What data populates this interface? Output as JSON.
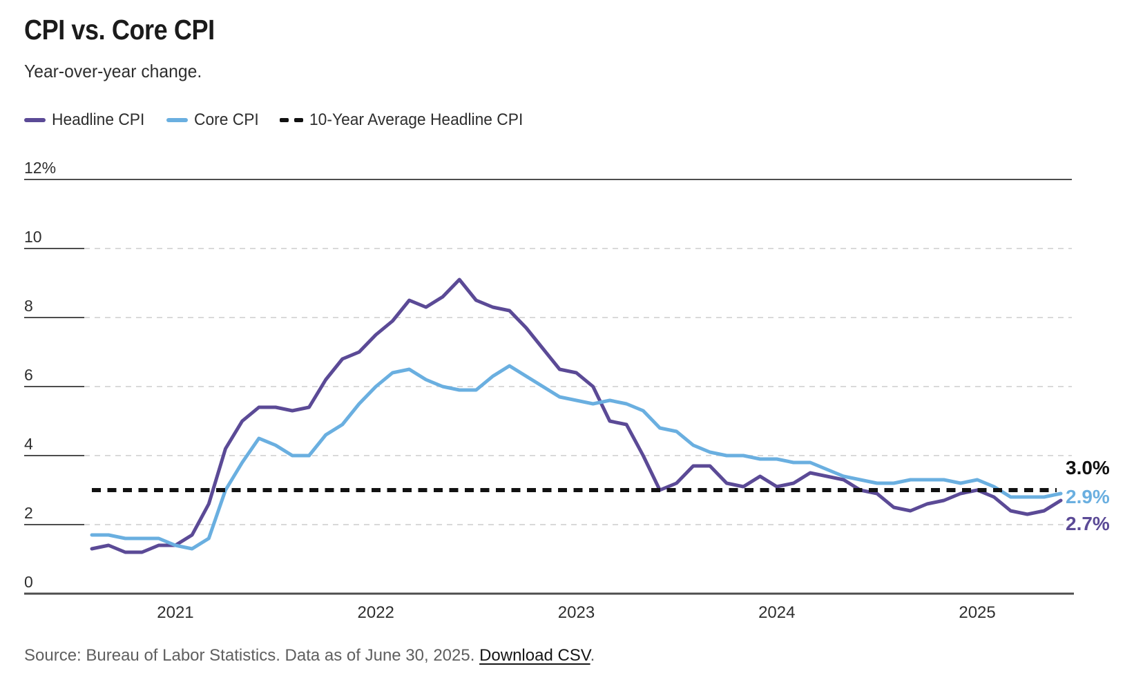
{
  "header": {
    "title": "CPI vs. Core CPI",
    "subtitle": "Year-over-year change."
  },
  "legend": {
    "items": [
      {
        "label": "Headline CPI",
        "color": "#5b4a96",
        "style": "solid"
      },
      {
        "label": "Core CPI",
        "color": "#6aafe0",
        "style": "solid"
      },
      {
        "label": "10-Year Average Headline CPI",
        "color": "#111111",
        "style": "dashed"
      }
    ]
  },
  "chart_data": {
    "type": "line",
    "title": "CPI vs. Core CPI",
    "subtitle": "Year-over-year change.",
    "frequency": "monthly",
    "x_start": "2020-08",
    "x_end": "2025-06",
    "ylim": [
      0,
      12
    ],
    "grid": "horizontal-dashed",
    "yticks": [
      {
        "value": 12,
        "label": "12%"
      },
      {
        "value": 10,
        "label": "10"
      },
      {
        "value": 8,
        "label": "8"
      },
      {
        "value": 6,
        "label": "6"
      },
      {
        "value": 4,
        "label": "4"
      },
      {
        "value": 2,
        "label": "2"
      },
      {
        "value": 0,
        "label": "0"
      }
    ],
    "xticks": [
      2021,
      2022,
      2023,
      2024,
      2025
    ],
    "series": [
      {
        "name": "Headline CPI",
        "color": "#5b4a96",
        "end_label": "2.7%",
        "values": [
          1.3,
          1.4,
          1.2,
          1.2,
          1.4,
          1.4,
          1.7,
          2.6,
          4.2,
          5.0,
          5.4,
          5.4,
          5.3,
          5.4,
          6.2,
          6.8,
          7.0,
          7.5,
          7.9,
          8.5,
          8.3,
          8.6,
          9.1,
          8.5,
          8.3,
          8.2,
          7.7,
          7.1,
          6.5,
          6.4,
          6.0,
          5.0,
          4.9,
          4.0,
          3.0,
          3.2,
          3.7,
          3.7,
          3.2,
          3.1,
          3.4,
          3.1,
          3.2,
          3.5,
          3.4,
          3.3,
          3.0,
          2.9,
          2.5,
          2.4,
          2.6,
          2.7,
          2.9,
          3.0,
          2.8,
          2.4,
          2.3,
          2.4,
          2.7
        ]
      },
      {
        "name": "Core CPI",
        "color": "#6aafe0",
        "end_label": "2.9%",
        "values": [
          1.7,
          1.7,
          1.6,
          1.6,
          1.6,
          1.4,
          1.3,
          1.6,
          3.0,
          3.8,
          4.5,
          4.3,
          4.0,
          4.0,
          4.6,
          4.9,
          5.5,
          6.0,
          6.4,
          6.5,
          6.2,
          6.0,
          5.9,
          5.9,
          6.3,
          6.6,
          6.3,
          6.0,
          5.7,
          5.6,
          5.5,
          5.6,
          5.5,
          5.3,
          4.8,
          4.7,
          4.3,
          4.1,
          4.0,
          4.0,
          3.9,
          3.9,
          3.8,
          3.8,
          3.6,
          3.4,
          3.3,
          3.2,
          3.2,
          3.3,
          3.3,
          3.3,
          3.2,
          3.3,
          3.1,
          2.8,
          2.8,
          2.8,
          2.9
        ]
      }
    ],
    "reference_line": {
      "name": "10-Year Average Headline CPI",
      "value": 3.0,
      "label": "3.0%",
      "color": "#111111"
    },
    "colors": {
      "grid_light": "#d9d9d9",
      "axis_dark": "#4d4d4d"
    }
  },
  "footer": {
    "source": "Source: Bureau of Labor Statistics. Data as of June 30, 2025. ",
    "link_label": "Download CSV",
    "suffix": "."
  }
}
